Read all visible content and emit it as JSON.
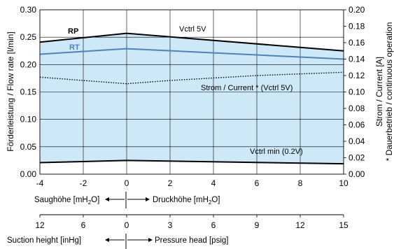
{
  "chart_data": {
    "type": "line",
    "x": [
      -4,
      0,
      10
    ],
    "xlim": [
      -4,
      10
    ],
    "xticks": [
      -4,
      -2,
      0,
      2,
      4,
      6,
      8,
      10
    ],
    "ylim": [
      0,
      0.3
    ],
    "yticks": [
      "0.00",
      "0.05",
      "0.10",
      "0.15",
      "0.20",
      "0.25",
      "0.30"
    ],
    "y2lim": [
      0,
      0.2
    ],
    "y2ticks": [
      "0.00",
      "0.02",
      "0.04",
      "0.06",
      "0.08",
      "0.10",
      "0.12",
      "0.14",
      "0.16",
      "0.18",
      "0.20"
    ],
    "ylabel": "Förderleistung / Flow rate [l/min]",
    "y2label_line1": "Strom / Current [A]",
    "y2label_line2": "* Dauerbetrieb / continuous operation",
    "grid": true,
    "series": [
      {
        "name": "RP",
        "axis": "left",
        "color": "#000000",
        "x": [
          -4,
          0,
          10
        ],
        "values": [
          0.241,
          0.257,
          0.225
        ]
      },
      {
        "name": "RT",
        "axis": "left",
        "color": "#4f81bd",
        "x": [
          -4,
          0,
          10
        ],
        "values": [
          0.219,
          0.229,
          0.21
        ]
      },
      {
        "name": "Vctrl min (0.2V)",
        "axis": "left",
        "color": "#000000",
        "x": [
          -4,
          0,
          10
        ],
        "values": [
          0.021,
          0.025,
          0.019
        ]
      },
      {
        "name": "Strom / Current * (Vctrl 5V)",
        "axis": "right",
        "style": "dotted",
        "color": "#000000",
        "x": [
          -4,
          -2,
          -1,
          0,
          2,
          4,
          6,
          8,
          10
        ],
        "values": [
          0.118,
          0.114,
          0.112,
          0.11,
          0.114,
          0.117,
          0.12,
          0.122,
          0.124
        ]
      }
    ],
    "fill_color": "#cde9f7",
    "annotations": {
      "vctrl5v": "Vctrl 5V",
      "rp": "RP",
      "rt": "RT",
      "current": "Strom / Current * (Vctrl 5V)",
      "vctrlmin": "Vctrl min (0.2V)"
    },
    "scale_water": {
      "left_label": "Saughöhe [mH",
      "left_sub": "2",
      "left_tail": "O]",
      "right_label": "Druckhöhe [mH",
      "right_sub": "2",
      "right_tail": "O]"
    },
    "scale_imperial": {
      "ticks": [
        "12",
        "6",
        "0",
        "3",
        "6",
        "9",
        "12",
        "15"
      ],
      "left_label": "Suction height [inHg]",
      "right_label": "Pressure head [psig]"
    }
  }
}
